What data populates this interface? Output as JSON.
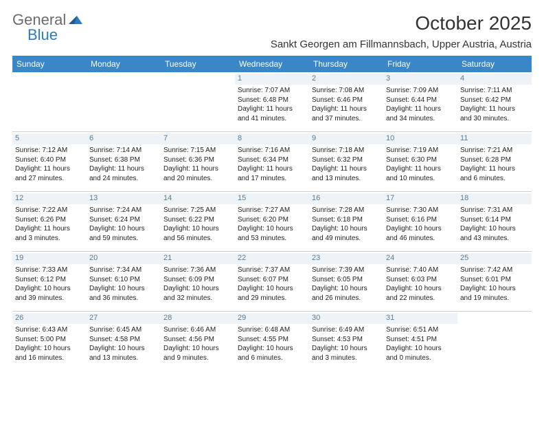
{
  "brand": {
    "word1": "General",
    "word2": "Blue"
  },
  "title": "October 2025",
  "location": "Sankt Georgen am Fillmannsbach, Upper Austria, Austria",
  "colors": {
    "header_bg": "#3a87c7",
    "header_text": "#ffffff",
    "daynum_bg": "#eef3f7",
    "daynum_text": "#5a7a94",
    "border": "#cfcfcf",
    "logo_gray": "#6b6b6b",
    "logo_blue": "#2f7bbf"
  },
  "day_labels": [
    "Sunday",
    "Monday",
    "Tuesday",
    "Wednesday",
    "Thursday",
    "Friday",
    "Saturday"
  ],
  "weeks": [
    [
      {
        "empty": true
      },
      {
        "empty": true
      },
      {
        "empty": true
      },
      {
        "num": "1",
        "sunrise": "Sunrise: 7:07 AM",
        "sunset": "Sunset: 6:48 PM",
        "daylight1": "Daylight: 11 hours",
        "daylight2": "and 41 minutes."
      },
      {
        "num": "2",
        "sunrise": "Sunrise: 7:08 AM",
        "sunset": "Sunset: 6:46 PM",
        "daylight1": "Daylight: 11 hours",
        "daylight2": "and 37 minutes."
      },
      {
        "num": "3",
        "sunrise": "Sunrise: 7:09 AM",
        "sunset": "Sunset: 6:44 PM",
        "daylight1": "Daylight: 11 hours",
        "daylight2": "and 34 minutes."
      },
      {
        "num": "4",
        "sunrise": "Sunrise: 7:11 AM",
        "sunset": "Sunset: 6:42 PM",
        "daylight1": "Daylight: 11 hours",
        "daylight2": "and 30 minutes."
      }
    ],
    [
      {
        "num": "5",
        "sunrise": "Sunrise: 7:12 AM",
        "sunset": "Sunset: 6:40 PM",
        "daylight1": "Daylight: 11 hours",
        "daylight2": "and 27 minutes."
      },
      {
        "num": "6",
        "sunrise": "Sunrise: 7:14 AM",
        "sunset": "Sunset: 6:38 PM",
        "daylight1": "Daylight: 11 hours",
        "daylight2": "and 24 minutes."
      },
      {
        "num": "7",
        "sunrise": "Sunrise: 7:15 AM",
        "sunset": "Sunset: 6:36 PM",
        "daylight1": "Daylight: 11 hours",
        "daylight2": "and 20 minutes."
      },
      {
        "num": "8",
        "sunrise": "Sunrise: 7:16 AM",
        "sunset": "Sunset: 6:34 PM",
        "daylight1": "Daylight: 11 hours",
        "daylight2": "and 17 minutes."
      },
      {
        "num": "9",
        "sunrise": "Sunrise: 7:18 AM",
        "sunset": "Sunset: 6:32 PM",
        "daylight1": "Daylight: 11 hours",
        "daylight2": "and 13 minutes."
      },
      {
        "num": "10",
        "sunrise": "Sunrise: 7:19 AM",
        "sunset": "Sunset: 6:30 PM",
        "daylight1": "Daylight: 11 hours",
        "daylight2": "and 10 minutes."
      },
      {
        "num": "11",
        "sunrise": "Sunrise: 7:21 AM",
        "sunset": "Sunset: 6:28 PM",
        "daylight1": "Daylight: 11 hours",
        "daylight2": "and 6 minutes."
      }
    ],
    [
      {
        "num": "12",
        "sunrise": "Sunrise: 7:22 AM",
        "sunset": "Sunset: 6:26 PM",
        "daylight1": "Daylight: 11 hours",
        "daylight2": "and 3 minutes."
      },
      {
        "num": "13",
        "sunrise": "Sunrise: 7:24 AM",
        "sunset": "Sunset: 6:24 PM",
        "daylight1": "Daylight: 10 hours",
        "daylight2": "and 59 minutes."
      },
      {
        "num": "14",
        "sunrise": "Sunrise: 7:25 AM",
        "sunset": "Sunset: 6:22 PM",
        "daylight1": "Daylight: 10 hours",
        "daylight2": "and 56 minutes."
      },
      {
        "num": "15",
        "sunrise": "Sunrise: 7:27 AM",
        "sunset": "Sunset: 6:20 PM",
        "daylight1": "Daylight: 10 hours",
        "daylight2": "and 53 minutes."
      },
      {
        "num": "16",
        "sunrise": "Sunrise: 7:28 AM",
        "sunset": "Sunset: 6:18 PM",
        "daylight1": "Daylight: 10 hours",
        "daylight2": "and 49 minutes."
      },
      {
        "num": "17",
        "sunrise": "Sunrise: 7:30 AM",
        "sunset": "Sunset: 6:16 PM",
        "daylight1": "Daylight: 10 hours",
        "daylight2": "and 46 minutes."
      },
      {
        "num": "18",
        "sunrise": "Sunrise: 7:31 AM",
        "sunset": "Sunset: 6:14 PM",
        "daylight1": "Daylight: 10 hours",
        "daylight2": "and 43 minutes."
      }
    ],
    [
      {
        "num": "19",
        "sunrise": "Sunrise: 7:33 AM",
        "sunset": "Sunset: 6:12 PM",
        "daylight1": "Daylight: 10 hours",
        "daylight2": "and 39 minutes."
      },
      {
        "num": "20",
        "sunrise": "Sunrise: 7:34 AM",
        "sunset": "Sunset: 6:10 PM",
        "daylight1": "Daylight: 10 hours",
        "daylight2": "and 36 minutes."
      },
      {
        "num": "21",
        "sunrise": "Sunrise: 7:36 AM",
        "sunset": "Sunset: 6:09 PM",
        "daylight1": "Daylight: 10 hours",
        "daylight2": "and 32 minutes."
      },
      {
        "num": "22",
        "sunrise": "Sunrise: 7:37 AM",
        "sunset": "Sunset: 6:07 PM",
        "daylight1": "Daylight: 10 hours",
        "daylight2": "and 29 minutes."
      },
      {
        "num": "23",
        "sunrise": "Sunrise: 7:39 AM",
        "sunset": "Sunset: 6:05 PM",
        "daylight1": "Daylight: 10 hours",
        "daylight2": "and 26 minutes."
      },
      {
        "num": "24",
        "sunrise": "Sunrise: 7:40 AM",
        "sunset": "Sunset: 6:03 PM",
        "daylight1": "Daylight: 10 hours",
        "daylight2": "and 22 minutes."
      },
      {
        "num": "25",
        "sunrise": "Sunrise: 7:42 AM",
        "sunset": "Sunset: 6:01 PM",
        "daylight1": "Daylight: 10 hours",
        "daylight2": "and 19 minutes."
      }
    ],
    [
      {
        "num": "26",
        "sunrise": "Sunrise: 6:43 AM",
        "sunset": "Sunset: 5:00 PM",
        "daylight1": "Daylight: 10 hours",
        "daylight2": "and 16 minutes."
      },
      {
        "num": "27",
        "sunrise": "Sunrise: 6:45 AM",
        "sunset": "Sunset: 4:58 PM",
        "daylight1": "Daylight: 10 hours",
        "daylight2": "and 13 minutes."
      },
      {
        "num": "28",
        "sunrise": "Sunrise: 6:46 AM",
        "sunset": "Sunset: 4:56 PM",
        "daylight1": "Daylight: 10 hours",
        "daylight2": "and 9 minutes."
      },
      {
        "num": "29",
        "sunrise": "Sunrise: 6:48 AM",
        "sunset": "Sunset: 4:55 PM",
        "daylight1": "Daylight: 10 hours",
        "daylight2": "and 6 minutes."
      },
      {
        "num": "30",
        "sunrise": "Sunrise: 6:49 AM",
        "sunset": "Sunset: 4:53 PM",
        "daylight1": "Daylight: 10 hours",
        "daylight2": "and 3 minutes."
      },
      {
        "num": "31",
        "sunrise": "Sunrise: 6:51 AM",
        "sunset": "Sunset: 4:51 PM",
        "daylight1": "Daylight: 10 hours",
        "daylight2": "and 0 minutes."
      },
      {
        "empty": true
      }
    ]
  ]
}
